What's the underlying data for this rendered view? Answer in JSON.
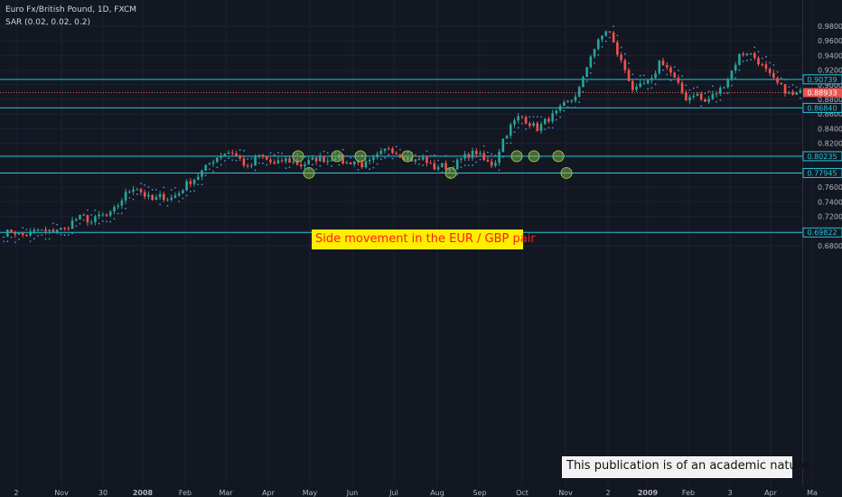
{
  "header": {
    "symbol_line": "Euro Fx/British Pound, 1D, FXCM",
    "indicator_line": "SAR (0.02, 0.02, 0.2)"
  },
  "annotations": {
    "banner": "Side movement in the EUR / GBP pair",
    "note": "This publication is of an academic nature."
  },
  "colors": {
    "background": "#131722",
    "up_candle": "#26a69a",
    "down_candle": "#ef5350",
    "sar_dots": "#4a90d9",
    "level_lines": "#26c6da",
    "price_badge": "#ef5350",
    "marker_fill": "#8bc34a"
  },
  "chart_data": {
    "type": "candlestick",
    "series_indicator": "Parabolic SAR",
    "ylim": [
      0.675,
      0.985
    ],
    "y_ticks": [
      "0.98000",
      "0.96000",
      "0.94000",
      "0.92000",
      "0.90000",
      "0.88000",
      "0.86000",
      "0.84000",
      "0.82000",
      "0.80000",
      "0.78000",
      "0.76000",
      "0.74000",
      "0.72000",
      "0.70000",
      "0.68000"
    ],
    "x_ticks": [
      "2",
      "Nov",
      "30",
      "2008",
      "Feb",
      "Mar",
      "Apr",
      "May",
      "Jun",
      "Jul",
      "Aug",
      "Sep",
      "Oct",
      "Nov",
      "2",
      "2009",
      "Feb",
      "3",
      "Apr",
      "Ma"
    ],
    "last_price": 0.88933,
    "horizontal_levels": [
      0.90739,
      0.8684,
      0.80235,
      0.77945,
      0.69822
    ],
    "touch_points": [
      0.80235,
      0.77945,
      0.80235,
      0.80235,
      0.80235,
      0.77945,
      0.80235,
      0.80235,
      0.80235,
      0.77945
    ],
    "price_path": [
      0.697,
      0.7,
      0.694,
      0.697,
      0.702,
      0.698,
      0.703,
      0.702,
      0.715,
      0.72,
      0.712,
      0.722,
      0.72,
      0.735,
      0.752,
      0.762,
      0.75,
      0.742,
      0.748,
      0.744,
      0.752,
      0.766,
      0.773,
      0.786,
      0.798,
      0.806,
      0.809,
      0.798,
      0.784,
      0.804,
      0.798,
      0.79,
      0.798,
      0.795,
      0.79,
      0.796,
      0.8,
      0.797,
      0.804,
      0.792,
      0.796,
      0.79,
      0.795,
      0.805,
      0.815,
      0.806,
      0.8,
      0.796,
      0.8,
      0.786,
      0.79,
      0.785,
      0.796,
      0.804,
      0.808,
      0.795,
      0.79,
      0.825,
      0.845,
      0.858,
      0.848,
      0.84,
      0.852,
      0.86,
      0.872,
      0.88,
      0.9,
      0.94,
      0.96,
      0.978,
      0.945,
      0.92,
      0.89,
      0.9,
      0.905,
      0.935,
      0.92,
      0.9,
      0.88,
      0.89,
      0.875,
      0.885,
      0.895,
      0.915,
      0.94,
      0.945,
      0.935,
      0.92,
      0.905,
      0.895,
      0.885,
      0.889
    ]
  }
}
